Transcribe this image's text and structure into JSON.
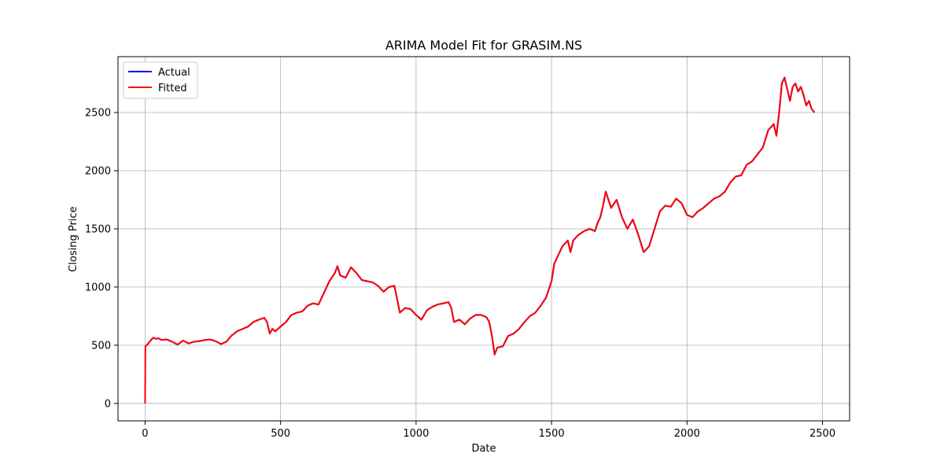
{
  "chart_data": {
    "type": "line",
    "title": "ARIMA Model Fit for GRASIM.NS",
    "xlabel": "Date",
    "ylabel": "Closing Price",
    "xlim": [
      -100,
      2600
    ],
    "ylim": [
      -150,
      2980
    ],
    "xticks": [
      0,
      500,
      1000,
      1500,
      2000,
      2500
    ],
    "yticks": [
      0,
      500,
      1000,
      1500,
      2000,
      2500
    ],
    "grid": true,
    "legend_position": "upper-left",
    "series": [
      {
        "name": "Actual",
        "color": "#0000ff",
        "points": [
          [
            0,
            490
          ],
          [
            10,
            510
          ],
          [
            20,
            540
          ],
          [
            30,
            565
          ],
          [
            40,
            555
          ],
          [
            50,
            560
          ],
          [
            60,
            545
          ],
          [
            80,
            550
          ],
          [
            100,
            530
          ],
          [
            120,
            505
          ],
          [
            140,
            540
          ],
          [
            160,
            515
          ],
          [
            180,
            530
          ],
          [
            200,
            535
          ],
          [
            220,
            545
          ],
          [
            240,
            550
          ],
          [
            260,
            535
          ],
          [
            280,
            510
          ],
          [
            300,
            530
          ],
          [
            320,
            585
          ],
          [
            340,
            620
          ],
          [
            360,
            640
          ],
          [
            380,
            660
          ],
          [
            400,
            700
          ],
          [
            420,
            720
          ],
          [
            440,
            735
          ],
          [
            450,
            700
          ],
          [
            460,
            600
          ],
          [
            470,
            640
          ],
          [
            480,
            620
          ],
          [
            500,
            660
          ],
          [
            520,
            700
          ],
          [
            540,
            760
          ],
          [
            560,
            780
          ],
          [
            580,
            790
          ],
          [
            600,
            840
          ],
          [
            620,
            860
          ],
          [
            640,
            850
          ],
          [
            660,
            950
          ],
          [
            680,
            1050
          ],
          [
            700,
            1120
          ],
          [
            710,
            1180
          ],
          [
            720,
            1100
          ],
          [
            740,
            1080
          ],
          [
            760,
            1170
          ],
          [
            780,
            1120
          ],
          [
            800,
            1060
          ],
          [
            820,
            1050
          ],
          [
            840,
            1040
          ],
          [
            860,
            1010
          ],
          [
            880,
            960
          ],
          [
            900,
            1000
          ],
          [
            920,
            1010
          ],
          [
            930,
            900
          ],
          [
            940,
            780
          ],
          [
            960,
            820
          ],
          [
            980,
            810
          ],
          [
            1000,
            760
          ],
          [
            1020,
            720
          ],
          [
            1040,
            800
          ],
          [
            1060,
            830
          ],
          [
            1080,
            850
          ],
          [
            1100,
            860
          ],
          [
            1120,
            870
          ],
          [
            1130,
            820
          ],
          [
            1140,
            700
          ],
          [
            1160,
            720
          ],
          [
            1180,
            680
          ],
          [
            1200,
            730
          ],
          [
            1220,
            760
          ],
          [
            1240,
            760
          ],
          [
            1260,
            740
          ],
          [
            1270,
            700
          ],
          [
            1280,
            580
          ],
          [
            1290,
            420
          ],
          [
            1300,
            480
          ],
          [
            1320,
            490
          ],
          [
            1340,
            580
          ],
          [
            1360,
            600
          ],
          [
            1380,
            640
          ],
          [
            1400,
            700
          ],
          [
            1420,
            750
          ],
          [
            1440,
            780
          ],
          [
            1460,
            840
          ],
          [
            1480,
            910
          ],
          [
            1500,
            1050
          ],
          [
            1510,
            1200
          ],
          [
            1520,
            1250
          ],
          [
            1540,
            1350
          ],
          [
            1560,
            1400
          ],
          [
            1570,
            1300
          ],
          [
            1580,
            1400
          ],
          [
            1600,
            1450
          ],
          [
            1620,
            1480
          ],
          [
            1640,
            1500
          ],
          [
            1660,
            1480
          ],
          [
            1670,
            1550
          ],
          [
            1680,
            1600
          ],
          [
            1690,
            1700
          ],
          [
            1700,
            1820
          ],
          [
            1720,
            1680
          ],
          [
            1740,
            1750
          ],
          [
            1760,
            1600
          ],
          [
            1780,
            1500
          ],
          [
            1800,
            1580
          ],
          [
            1820,
            1450
          ],
          [
            1840,
            1300
          ],
          [
            1860,
            1350
          ],
          [
            1880,
            1500
          ],
          [
            1900,
            1650
          ],
          [
            1920,
            1700
          ],
          [
            1940,
            1690
          ],
          [
            1960,
            1760
          ],
          [
            1980,
            1720
          ],
          [
            2000,
            1620
          ],
          [
            2020,
            1600
          ],
          [
            2040,
            1650
          ],
          [
            2060,
            1680
          ],
          [
            2080,
            1720
          ],
          [
            2100,
            1760
          ],
          [
            2120,
            1780
          ],
          [
            2140,
            1820
          ],
          [
            2160,
            1900
          ],
          [
            2180,
            1950
          ],
          [
            2200,
            1960
          ],
          [
            2220,
            2050
          ],
          [
            2240,
            2080
          ],
          [
            2260,
            2140
          ],
          [
            2280,
            2200
          ],
          [
            2300,
            2350
          ],
          [
            2320,
            2400
          ],
          [
            2330,
            2300
          ],
          [
            2340,
            2500
          ],
          [
            2350,
            2750
          ],
          [
            2360,
            2800
          ],
          [
            2370,
            2700
          ],
          [
            2380,
            2600
          ],
          [
            2390,
            2720
          ],
          [
            2400,
            2750
          ],
          [
            2410,
            2680
          ],
          [
            2420,
            2720
          ],
          [
            2430,
            2650
          ],
          [
            2440,
            2560
          ],
          [
            2450,
            2600
          ],
          [
            2460,
            2530
          ],
          [
            2470,
            2500
          ]
        ]
      },
      {
        "name": "Fitted",
        "color": "#ff0000",
        "points": [
          [
            0,
            0
          ],
          [
            1,
            490
          ],
          [
            10,
            510
          ],
          [
            20,
            540
          ],
          [
            30,
            565
          ],
          [
            40,
            555
          ],
          [
            50,
            560
          ],
          [
            60,
            545
          ],
          [
            80,
            550
          ],
          [
            100,
            530
          ],
          [
            120,
            505
          ],
          [
            140,
            540
          ],
          [
            160,
            515
          ],
          [
            180,
            530
          ],
          [
            200,
            535
          ],
          [
            220,
            545
          ],
          [
            240,
            550
          ],
          [
            260,
            535
          ],
          [
            280,
            510
          ],
          [
            300,
            530
          ],
          [
            320,
            585
          ],
          [
            340,
            620
          ],
          [
            360,
            640
          ],
          [
            380,
            660
          ],
          [
            400,
            700
          ],
          [
            420,
            720
          ],
          [
            440,
            735
          ],
          [
            450,
            700
          ],
          [
            460,
            600
          ],
          [
            470,
            640
          ],
          [
            480,
            620
          ],
          [
            500,
            660
          ],
          [
            520,
            700
          ],
          [
            540,
            760
          ],
          [
            560,
            780
          ],
          [
            580,
            790
          ],
          [
            600,
            840
          ],
          [
            620,
            860
          ],
          [
            640,
            850
          ],
          [
            660,
            950
          ],
          [
            680,
            1050
          ],
          [
            700,
            1120
          ],
          [
            710,
            1180
          ],
          [
            720,
            1100
          ],
          [
            740,
            1080
          ],
          [
            760,
            1170
          ],
          [
            780,
            1120
          ],
          [
            800,
            1060
          ],
          [
            820,
            1050
          ],
          [
            840,
            1040
          ],
          [
            860,
            1010
          ],
          [
            880,
            960
          ],
          [
            900,
            1000
          ],
          [
            920,
            1010
          ],
          [
            930,
            900
          ],
          [
            940,
            780
          ],
          [
            960,
            820
          ],
          [
            980,
            810
          ],
          [
            1000,
            760
          ],
          [
            1020,
            720
          ],
          [
            1040,
            800
          ],
          [
            1060,
            830
          ],
          [
            1080,
            850
          ],
          [
            1100,
            860
          ],
          [
            1120,
            870
          ],
          [
            1130,
            820
          ],
          [
            1140,
            700
          ],
          [
            1160,
            720
          ],
          [
            1180,
            680
          ],
          [
            1200,
            730
          ],
          [
            1220,
            760
          ],
          [
            1240,
            760
          ],
          [
            1260,
            740
          ],
          [
            1270,
            700
          ],
          [
            1280,
            580
          ],
          [
            1290,
            420
          ],
          [
            1300,
            480
          ],
          [
            1320,
            490
          ],
          [
            1340,
            580
          ],
          [
            1360,
            600
          ],
          [
            1380,
            640
          ],
          [
            1400,
            700
          ],
          [
            1420,
            750
          ],
          [
            1440,
            780
          ],
          [
            1460,
            840
          ],
          [
            1480,
            910
          ],
          [
            1500,
            1050
          ],
          [
            1510,
            1200
          ],
          [
            1520,
            1250
          ],
          [
            1540,
            1350
          ],
          [
            1560,
            1400
          ],
          [
            1570,
            1300
          ],
          [
            1580,
            1400
          ],
          [
            1600,
            1450
          ],
          [
            1620,
            1480
          ],
          [
            1640,
            1500
          ],
          [
            1660,
            1480
          ],
          [
            1670,
            1550
          ],
          [
            1680,
            1600
          ],
          [
            1690,
            1700
          ],
          [
            1700,
            1820
          ],
          [
            1720,
            1680
          ],
          [
            1740,
            1750
          ],
          [
            1760,
            1600
          ],
          [
            1780,
            1500
          ],
          [
            1800,
            1580
          ],
          [
            1820,
            1450
          ],
          [
            1840,
            1300
          ],
          [
            1860,
            1350
          ],
          [
            1880,
            1500
          ],
          [
            1900,
            1650
          ],
          [
            1920,
            1700
          ],
          [
            1940,
            1690
          ],
          [
            1960,
            1760
          ],
          [
            1980,
            1720
          ],
          [
            2000,
            1620
          ],
          [
            2020,
            1600
          ],
          [
            2040,
            1650
          ],
          [
            2060,
            1680
          ],
          [
            2080,
            1720
          ],
          [
            2100,
            1760
          ],
          [
            2120,
            1780
          ],
          [
            2140,
            1820
          ],
          [
            2160,
            1900
          ],
          [
            2180,
            1950
          ],
          [
            2200,
            1960
          ],
          [
            2220,
            2050
          ],
          [
            2240,
            2080
          ],
          [
            2260,
            2140
          ],
          [
            2280,
            2200
          ],
          [
            2300,
            2350
          ],
          [
            2320,
            2400
          ],
          [
            2330,
            2300
          ],
          [
            2340,
            2500
          ],
          [
            2350,
            2750
          ],
          [
            2360,
            2800
          ],
          [
            2370,
            2700
          ],
          [
            2380,
            2600
          ],
          [
            2390,
            2720
          ],
          [
            2400,
            2750
          ],
          [
            2410,
            2680
          ],
          [
            2420,
            2720
          ],
          [
            2430,
            2650
          ],
          [
            2440,
            2560
          ],
          [
            2450,
            2600
          ],
          [
            2460,
            2530
          ],
          [
            2470,
            2500
          ]
        ]
      }
    ]
  }
}
